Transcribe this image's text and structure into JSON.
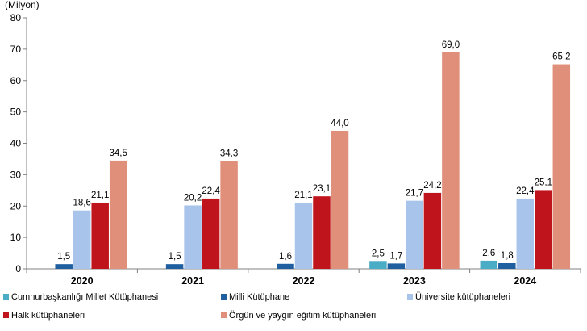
{
  "chart_data": {
    "type": "bar",
    "title": "",
    "unit_label": "(Milyon)",
    "xlabel": "",
    "ylabel": "",
    "ylim": [
      0,
      80
    ],
    "yticks": [
      0,
      10,
      20,
      30,
      40,
      50,
      60,
      70,
      80
    ],
    "grid": false,
    "legend_position": "bottom",
    "categories": [
      "2020",
      "2021",
      "2022",
      "2023",
      "2024"
    ],
    "series": [
      {
        "name": "Cumhurbaşkanlığı Millet Kütüphanesi",
        "color": "#4bacc6",
        "values": [
          null,
          null,
          null,
          2.5,
          2.6
        ],
        "labels": [
          "",
          "",
          "",
          "2,5",
          "2,6"
        ]
      },
      {
        "name": "Milli Kütüphane",
        "color": "#1f5fa0",
        "values": [
          1.5,
          1.5,
          1.6,
          1.7,
          1.8
        ],
        "labels": [
          "1,5",
          "1,5",
          "1,6",
          "1,7",
          "1,8"
        ]
      },
      {
        "name": "Üniversite kütüphaneleri",
        "color": "#a9c4eb",
        "values": [
          18.6,
          20.2,
          21.1,
          21.7,
          22.4
        ],
        "labels": [
          "18,6",
          "20,2",
          "21,1",
          "21,7",
          "22,4"
        ]
      },
      {
        "name": "Halk kütüphaneleri",
        "color": "#c0141c",
        "values": [
          21.1,
          22.4,
          23.1,
          24.2,
          25.1
        ],
        "labels": [
          "21,1",
          "22,4",
          "23,1",
          "24,2",
          "25,1"
        ]
      },
      {
        "name": "Örgün ve yaygın eğitim kütüphaneleri",
        "color": "#e0907a",
        "values": [
          34.5,
          34.3,
          44.0,
          69.0,
          65.2
        ],
        "labels": [
          "34,5",
          "34,3",
          "44,0",
          "69,0",
          "65,2"
        ]
      }
    ]
  }
}
